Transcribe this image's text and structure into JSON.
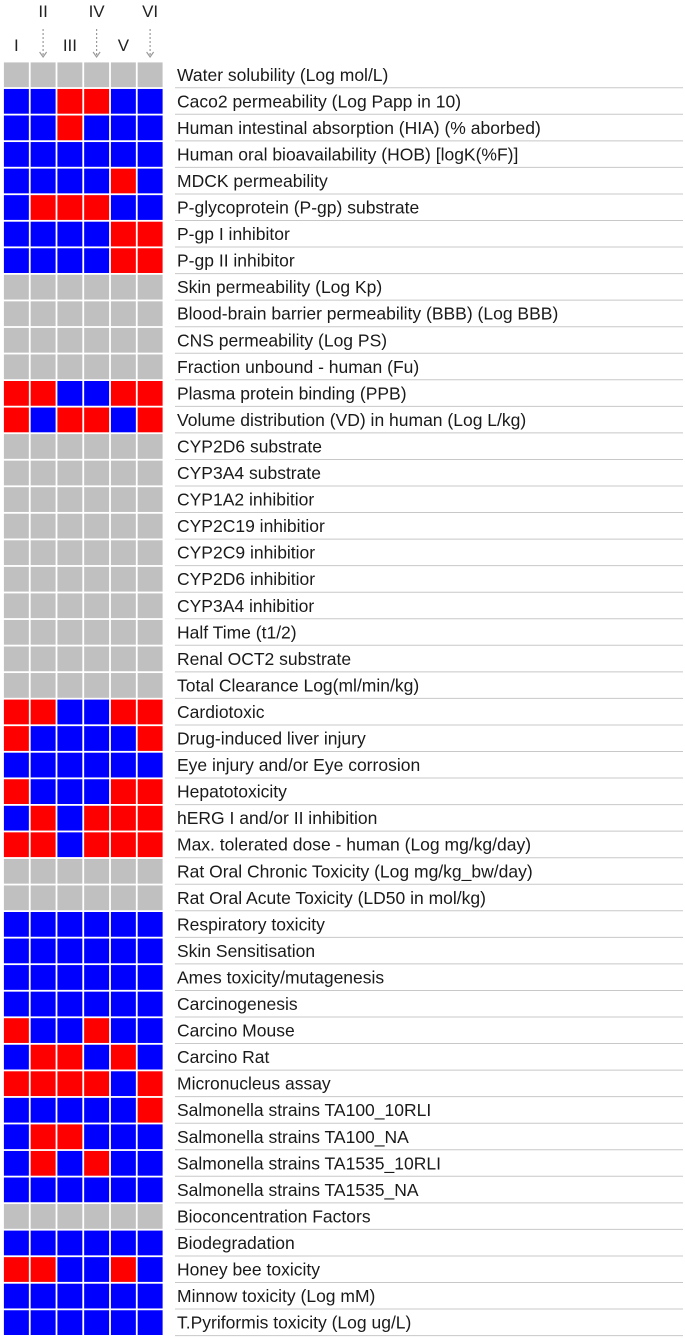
{
  "chart_data": {
    "type": "heatmap",
    "columns": [
      "I",
      "II",
      "III",
      "IV",
      "V",
      "VI"
    ],
    "arrow_columns": [
      "II",
      "IV",
      "VI"
    ],
    "colors": {
      "red": "#ff0000",
      "blue": "#0000ff",
      "gray": "#c0c0c0"
    },
    "rows": [
      {
        "label": "Water solubility (Log mol/L)",
        "cells": [
          "gray",
          "gray",
          "gray",
          "gray",
          "gray",
          "gray"
        ]
      },
      {
        "label": "Caco2 permeability (Log Papp in 10)",
        "cells": [
          "blue",
          "blue",
          "red",
          "red",
          "blue",
          "blue"
        ]
      },
      {
        "label": "Human intestinal absorption (HIA) (% aborbed)",
        "cells": [
          "blue",
          "blue",
          "red",
          "blue",
          "blue",
          "blue"
        ]
      },
      {
        "label": "Human oral bioavailability (HOB) [logK(%F)]",
        "cells": [
          "blue",
          "blue",
          "blue",
          "blue",
          "blue",
          "blue"
        ]
      },
      {
        "label": "MDCK permeability",
        "cells": [
          "blue",
          "blue",
          "blue",
          "blue",
          "red",
          "blue"
        ]
      },
      {
        "label": "P-glycoprotein (P-gp) substrate",
        "cells": [
          "blue",
          "red",
          "red",
          "red",
          "blue",
          "blue"
        ]
      },
      {
        "label": "P-gp I inhibitor",
        "cells": [
          "blue",
          "blue",
          "blue",
          "blue",
          "red",
          "red"
        ]
      },
      {
        "label": "P-gp II inhibitor",
        "cells": [
          "blue",
          "blue",
          "blue",
          "blue",
          "red",
          "red"
        ]
      },
      {
        "label": "Skin permeability (Log Kp)",
        "cells": [
          "gray",
          "gray",
          "gray",
          "gray",
          "gray",
          "gray"
        ]
      },
      {
        "label": "Blood-brain barrier permeability (BBB) (Log BBB)",
        "cells": [
          "gray",
          "gray",
          "gray",
          "gray",
          "gray",
          "gray"
        ]
      },
      {
        "label": "CNS permeability (Log PS)",
        "cells": [
          "gray",
          "gray",
          "gray",
          "gray",
          "gray",
          "gray"
        ]
      },
      {
        "label": "Fraction unbound - human (Fu)",
        "cells": [
          "gray",
          "gray",
          "gray",
          "gray",
          "gray",
          "gray"
        ]
      },
      {
        "label": "Plasma protein binding (PPB)",
        "cells": [
          "red",
          "red",
          "blue",
          "blue",
          "red",
          "red"
        ]
      },
      {
        "label": "Volume distribution (VD) in human (Log L/kg)",
        "cells": [
          "red",
          "blue",
          "red",
          "red",
          "blue",
          "red"
        ]
      },
      {
        "label": "CYP2D6 substrate",
        "cells": [
          "gray",
          "gray",
          "gray",
          "gray",
          "gray",
          "gray"
        ]
      },
      {
        "label": "CYP3A4 substrate",
        "cells": [
          "gray",
          "gray",
          "gray",
          "gray",
          "gray",
          "gray"
        ]
      },
      {
        "label": "CYP1A2 inhibitior",
        "cells": [
          "gray",
          "gray",
          "gray",
          "gray",
          "gray",
          "gray"
        ]
      },
      {
        "label": "CYP2C19 inhibitior",
        "cells": [
          "gray",
          "gray",
          "gray",
          "gray",
          "gray",
          "gray"
        ]
      },
      {
        "label": "CYP2C9 inhibitior",
        "cells": [
          "gray",
          "gray",
          "gray",
          "gray",
          "gray",
          "gray"
        ]
      },
      {
        "label": "CYP2D6 inhibitior",
        "cells": [
          "gray",
          "gray",
          "gray",
          "gray",
          "gray",
          "gray"
        ]
      },
      {
        "label": "CYP3A4 inhibitior",
        "cells": [
          "gray",
          "gray",
          "gray",
          "gray",
          "gray",
          "gray"
        ]
      },
      {
        "label": "Half Time (t1/2)",
        "cells": [
          "gray",
          "gray",
          "gray",
          "gray",
          "gray",
          "gray"
        ]
      },
      {
        "label": "Renal OCT2 substrate",
        "cells": [
          "gray",
          "gray",
          "gray",
          "gray",
          "gray",
          "gray"
        ]
      },
      {
        "label": "Total Clearance Log(ml/min/kg)",
        "cells": [
          "gray",
          "gray",
          "gray",
          "gray",
          "gray",
          "gray"
        ]
      },
      {
        "label": "Cardiotoxic",
        "cells": [
          "red",
          "red",
          "blue",
          "blue",
          "red",
          "red"
        ]
      },
      {
        "label": "Drug-induced liver injury",
        "cells": [
          "red",
          "blue",
          "blue",
          "blue",
          "blue",
          "red"
        ]
      },
      {
        "label": "Eye injury and/or Eye corrosion",
        "cells": [
          "blue",
          "blue",
          "blue",
          "blue",
          "blue",
          "blue"
        ]
      },
      {
        "label": "Hepatotoxicity",
        "cells": [
          "red",
          "blue",
          "blue",
          "blue",
          "red",
          "red"
        ]
      },
      {
        "label": "hERG I and/or II inhibition",
        "cells": [
          "blue",
          "red",
          "blue",
          "red",
          "red",
          "red"
        ]
      },
      {
        "label": "Max. tolerated dose - human (Log mg/kg/day)",
        "cells": [
          "red",
          "red",
          "blue",
          "red",
          "red",
          "red"
        ]
      },
      {
        "label": "Rat Oral Chronic Toxicity (Log mg/kg_bw/day)",
        "cells": [
          "gray",
          "gray",
          "gray",
          "gray",
          "gray",
          "gray"
        ]
      },
      {
        "label": "Rat Oral Acute Toxicity (LD50 in mol/kg)",
        "cells": [
          "gray",
          "gray",
          "gray",
          "gray",
          "gray",
          "gray"
        ]
      },
      {
        "label": "Respiratory toxicity",
        "cells": [
          "blue",
          "blue",
          "blue",
          "blue",
          "blue",
          "blue"
        ]
      },
      {
        "label": "Skin Sensitisation",
        "cells": [
          "blue",
          "blue",
          "blue",
          "blue",
          "blue",
          "blue"
        ]
      },
      {
        "label": "Ames toxicity/mutagenesis",
        "cells": [
          "blue",
          "blue",
          "blue",
          "blue",
          "blue",
          "blue"
        ]
      },
      {
        "label": "Carcinogenesis",
        "cells": [
          "blue",
          "blue",
          "blue",
          "blue",
          "blue",
          "blue"
        ]
      },
      {
        "label": "Carcino Mouse",
        "cells": [
          "red",
          "blue",
          "blue",
          "red",
          "blue",
          "blue"
        ]
      },
      {
        "label": "Carcino Rat",
        "cells": [
          "blue",
          "red",
          "red",
          "blue",
          "red",
          "blue"
        ]
      },
      {
        "label": "Micronucleus assay",
        "cells": [
          "red",
          "red",
          "red",
          "red",
          "blue",
          "red"
        ]
      },
      {
        "label": "Salmonella strains TA100_10RLI",
        "cells": [
          "blue",
          "blue",
          "blue",
          "blue",
          "blue",
          "red"
        ]
      },
      {
        "label": "Salmonella strains TA100_NA",
        "cells": [
          "blue",
          "red",
          "red",
          "blue",
          "blue",
          "blue"
        ]
      },
      {
        "label": "Salmonella strains TA1535_10RLI",
        "cells": [
          "blue",
          "red",
          "blue",
          "red",
          "blue",
          "blue"
        ]
      },
      {
        "label": "Salmonella strains TA1535_NA",
        "cells": [
          "blue",
          "blue",
          "blue",
          "blue",
          "blue",
          "blue"
        ]
      },
      {
        "label": "Bioconcentration Factors",
        "cells": [
          "gray",
          "gray",
          "gray",
          "gray",
          "gray",
          "gray"
        ]
      },
      {
        "label": "Biodegradation",
        "cells": [
          "blue",
          "blue",
          "blue",
          "blue",
          "blue",
          "blue"
        ]
      },
      {
        "label": "Honey bee toxicity",
        "cells": [
          "red",
          "red",
          "blue",
          "blue",
          "red",
          "blue"
        ]
      },
      {
        "label": "Minnow toxicity (Log mM)",
        "cells": [
          "blue",
          "blue",
          "blue",
          "blue",
          "blue",
          "blue"
        ]
      },
      {
        "label": "T.Pyriformis toxicity (Log ug/L)",
        "cells": [
          "blue",
          "blue",
          "blue",
          "blue",
          "blue",
          "blue"
        ]
      }
    ]
  }
}
